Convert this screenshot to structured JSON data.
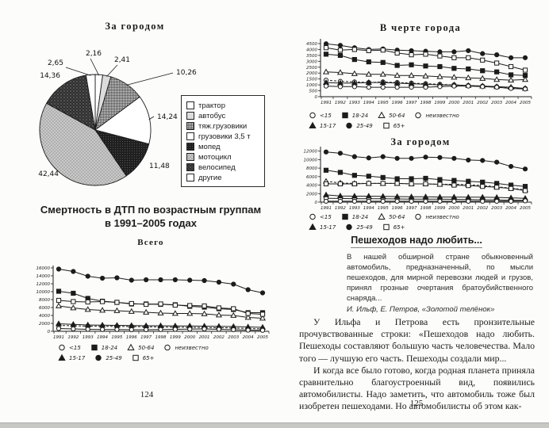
{
  "colors": {
    "ink": "#1c1c1c",
    "paper": "#fcfcfb"
  },
  "page_left": {
    "page_number": "124",
    "section_heading_line1": "Смертность в ДТП по возрастным группам",
    "section_heading_line2": "в 1991–2005 годах"
  },
  "page_right": {
    "page_number": "125",
    "article_heading": "Пешеходов надо любить...",
    "epigraph": "В нашей обширной стране обыкновенный автомобиль, предназначенный, по мысли пешеходов, для мирной перевозки людей и грузов, принял грозные очертания братоубийственного снаряда...",
    "epigraph_attribution": "И. Ильф, Е. Петров, «Золотой телёнок»",
    "paragraph1": "У Ильфа и Петрова есть пронзительные прочувствованные строки: «Пешеходов надо любить. Пешеходы составляют большую часть человечества. Мало того — лучшую его часть. Пешеходы создали мир...",
    "paragraph2": "И когда все было готово, когда родная планета приняла сравнительно благоустроенный вид, появились автомобилисты. Надо заметить, что автомобиль тоже был изобретен пешеходами. Но автомобилисты об этом как-"
  },
  "chart_data": [
    {
      "type": "pie",
      "title": "За городом",
      "labels": [
        "трактор",
        "автобус",
        "тяж.грузовики",
        "грузовики 3,5 т",
        "мопед",
        "мотоцикл",
        "велосипед",
        "другие"
      ],
      "values": [
        2.16,
        2.41,
        10.26,
        14.24,
        11.48,
        42.44,
        14.36,
        2.65
      ],
      "value_labels": [
        "2,16",
        "2,41",
        "10,26",
        "14,24",
        "11,48",
        "42,44",
        "14,36",
        "2,65"
      ],
      "fills": [
        "white",
        "lightgray",
        "crosshatch",
        "white",
        "darkfine",
        "lightspeckle",
        "darkspeckle",
        "white"
      ],
      "legend_position": "right"
    },
    {
      "type": "line",
      "title": "Всего",
      "x": [
        "1991",
        "1992",
        "1993",
        "1994",
        "1995",
        "1996",
        "1997",
        "1998",
        "1999",
        "2000",
        "2001",
        "2002",
        "2003",
        "2004",
        "2005"
      ],
      "ylim": [
        0,
        16000
      ],
      "yticks": [
        0,
        2000,
        4000,
        6000,
        8000,
        10000,
        12000,
        14000,
        16000
      ],
      "legend_rows": [
        [
          "<15",
          "18-24",
          "50-64",
          "неизвестно"
        ],
        [
          "15-17",
          "25-49",
          "65+"
        ]
      ],
      "series": [
        {
          "name": "<15",
          "marker": "circle-open",
          "dashed": true,
          "values": [
            1500,
            1400,
            1300,
            1250,
            1250,
            1200,
            1150,
            1100,
            1050,
            1000,
            950,
            900,
            850,
            700,
            600
          ]
        },
        {
          "name": "15-17",
          "marker": "triangle-filled",
          "values": [
            1900,
            1750,
            1600,
            1550,
            1500,
            1450,
            1400,
            1400,
            1350,
            1350,
            1300,
            1250,
            1200,
            1100,
            1000
          ]
        },
        {
          "name": "18-24",
          "marker": "square-filled",
          "values": [
            10100,
            9600,
            8300,
            7600,
            7300,
            6900,
            6900,
            6800,
            6700,
            6300,
            6100,
            5700,
            5500,
            4700,
            4700
          ]
        },
        {
          "name": "25-49",
          "marker": "circle-filled",
          "values": [
            15700,
            15100,
            13900,
            13400,
            13500,
            12900,
            13000,
            13000,
            13000,
            12900,
            12800,
            12400,
            11900,
            10500,
            9700
          ]
        },
        {
          "name": "50-64",
          "marker": "triangle-open",
          "values": [
            6400,
            5900,
            5500,
            5300,
            5200,
            5000,
            4800,
            4600,
            4500,
            4500,
            4400,
            4100,
            4000,
            3500,
            3300
          ]
        },
        {
          "name": "65+",
          "marker": "square-open",
          "values": [
            7800,
            7500,
            7400,
            7500,
            7300,
            7000,
            6800,
            6900,
            6600,
            6500,
            6400,
            5900,
            5700,
            4500,
            4300
          ]
        },
        {
          "name": "неизвестно",
          "marker": "circle-open",
          "values": [
            700,
            600,
            500,
            450,
            450,
            400,
            400,
            450,
            500,
            550,
            600,
            500,
            400,
            300,
            250
          ]
        }
      ]
    },
    {
      "type": "line",
      "title": "В черте города",
      "x": [
        "1991",
        "1992",
        "1993",
        "1994",
        "1995",
        "1996",
        "1997",
        "1998",
        "1999",
        "2000",
        "2001",
        "2002",
        "2003",
        "2004",
        "2005"
      ],
      "ylim": [
        0,
        4700
      ],
      "yticks": [
        0,
        500,
        1000,
        1500,
        2000,
        2500,
        3000,
        3500,
        4000,
        4500
      ],
      "legend_rows": [
        [
          "<15",
          "18-24",
          "50-64",
          "неизвестно"
        ],
        [
          "15-17",
          "25-49",
          "65+"
        ]
      ],
      "series": [
        {
          "name": "<15",
          "marker": "circle-open",
          "dashed": true,
          "values": [
            1400,
            1300,
            1250,
            1200,
            1250,
            1200,
            1150,
            1100,
            1050,
            1000,
            950,
            900,
            850,
            750,
            700
          ]
        },
        {
          "name": "15-17",
          "marker": "triangle-filled",
          "values": [
            1200,
            1150,
            1150,
            1200,
            1200,
            1150,
            1100,
            1050,
            1000,
            1000,
            950,
            900,
            850,
            800,
            700
          ]
        },
        {
          "name": "18-24",
          "marker": "square-filled",
          "values": [
            3600,
            3500,
            3150,
            2950,
            2900,
            2650,
            2700,
            2600,
            2550,
            2400,
            2350,
            2200,
            2100,
            1850,
            1800
          ]
        },
        {
          "name": "25-49",
          "marker": "circle-filled",
          "values": [
            4480,
            4350,
            4150,
            4000,
            4050,
            3950,
            3900,
            3850,
            3800,
            3800,
            3900,
            3650,
            3550,
            3300,
            3300
          ]
        },
        {
          "name": "50-64",
          "marker": "triangle-open",
          "values": [
            2100,
            2050,
            1950,
            1900,
            1900,
            1800,
            1800,
            1750,
            1700,
            1650,
            1600,
            1550,
            1450,
            1400,
            1450
          ]
        },
        {
          "name": "65+",
          "marker": "square-open",
          "values": [
            4150,
            3950,
            4000,
            3900,
            3950,
            3700,
            3550,
            3600,
            3450,
            3300,
            3300,
            3100,
            2850,
            2550,
            2250
          ]
        },
        {
          "name": "неизвестно",
          "marker": "circle-open",
          "values": [
            900,
            850,
            850,
            800,
            800,
            800,
            800,
            800,
            850,
            900,
            900,
            850,
            800,
            700,
            650
          ]
        }
      ]
    },
    {
      "type": "line",
      "title": "За городом",
      "x": [
        "1991",
        "1992",
        "1993",
        "1994",
        "1995",
        "1996",
        "1997",
        "1998",
        "1999",
        "2000",
        "2001",
        "2002",
        "2003",
        "2004",
        "2005"
      ],
      "ylim": [
        0,
        12500
      ],
      "yticks": [
        0,
        2000,
        4000,
        6000,
        8000,
        10000,
        12000
      ],
      "legend_rows": [
        [
          "<15",
          "18-24",
          "50-64",
          "неизвестно"
        ],
        [
          "15-17",
          "25-49",
          "65+"
        ]
      ],
      "series": [
        {
          "name": "<15",
          "marker": "circle-open",
          "values": [
            900,
            850,
            800,
            800,
            800,
            750,
            700,
            700,
            700,
            650,
            600,
            550,
            500,
            450,
            400
          ]
        },
        {
          "name": "15-17",
          "marker": "triangle-filled",
          "values": [
            1700,
            1450,
            1400,
            1400,
            1350,
            1300,
            1250,
            1250,
            1200,
            1200,
            1150,
            1150,
            1100,
            1000,
            900
          ]
        },
        {
          "name": "18-24",
          "marker": "square-filled",
          "values": [
            7500,
            7000,
            6300,
            6100,
            5800,
            5500,
            5500,
            5600,
            5300,
            5100,
            4900,
            4700,
            4400,
            4000,
            3700
          ]
        },
        {
          "name": "25-49",
          "marker": "circle-filled",
          "values": [
            11800,
            11500,
            10700,
            10400,
            10700,
            10300,
            10300,
            10600,
            10500,
            10300,
            9900,
            9800,
            9400,
            8400,
            7800
          ]
        },
        {
          "name": "50-64",
          "marker": "triangle-open",
          "dashed": true,
          "values": [
            4900,
            4500,
            4400,
            4400,
            4400,
            4400,
            4300,
            4300,
            4200,
            4200,
            4100,
            3900,
            3600,
            3300,
            2900
          ]
        },
        {
          "name": "65+",
          "marker": "square-open",
          "values": [
            4300,
            4300,
            4300,
            4400,
            4400,
            4400,
            4300,
            4300,
            4200,
            4000,
            3900,
            3700,
            3500,
            3200,
            2700
          ]
        },
        {
          "name": "неизвестно",
          "marker": "circle-open",
          "values": [
            200,
            200,
            200,
            200,
            200,
            200,
            200,
            200,
            200,
            200,
            200,
            200,
            200,
            200,
            300
          ]
        }
      ]
    }
  ]
}
